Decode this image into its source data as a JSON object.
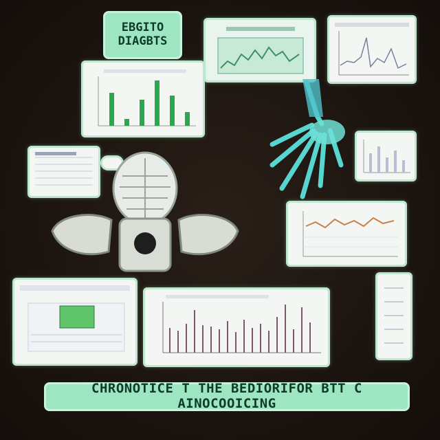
{
  "header": {
    "title_line1": "EBGITO",
    "title_line2": "DIAGBTS"
  },
  "footer": {
    "caption": "CHRONOTICE T THE BEDIORIFOR BTT C AINOCOOICING"
  },
  "colors": {
    "background": "#1c1410",
    "panel_border": "#bfe7cf",
    "accent_mint": "#9ee6c2",
    "bar_green": "#2aa84f",
    "line_orange": "#c9824a",
    "xray_cyan": "#57d6cf"
  },
  "illustrations": {
    "hand_xray": "cyan skeletal hand x-ray",
    "skull_xray": "skull and pelvis x-ray"
  }
}
